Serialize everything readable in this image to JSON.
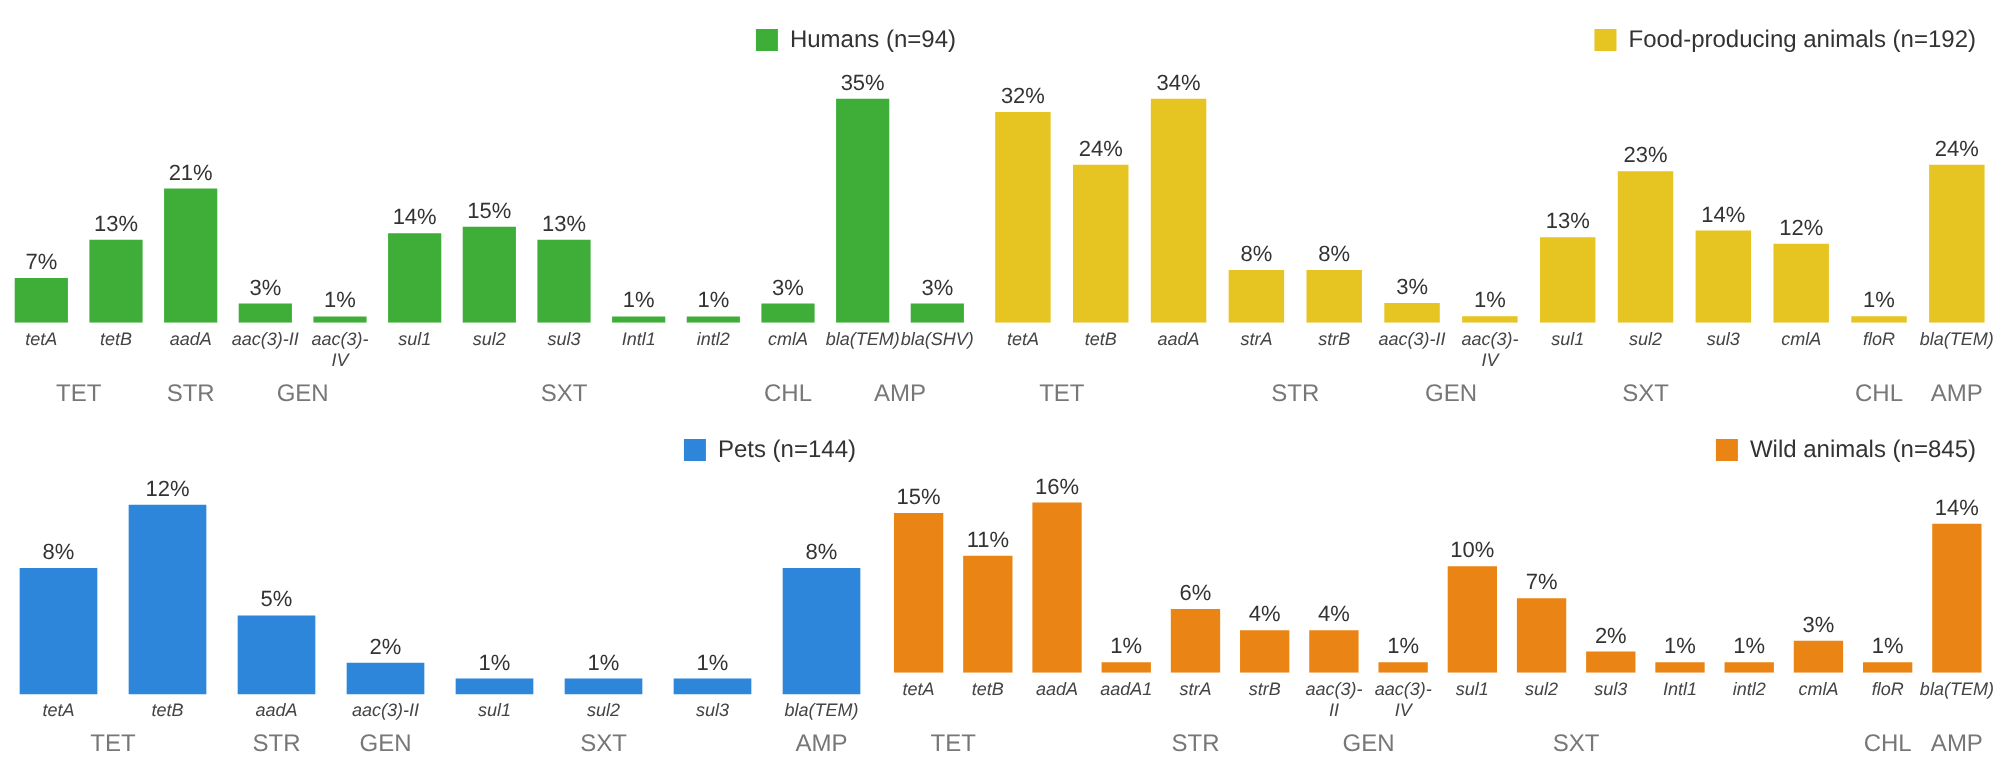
{
  "chart_data": [
    {
      "type": "bar",
      "categories": [
        "tetA",
        "tetB",
        "aadA",
        "aac(3)-II",
        "aac(3)-IV",
        "sul1",
        "sul2",
        "sul3",
        "Intl1",
        "intl2",
        "cmlA",
        "bla(TEM)",
        "bla(SHV)"
      ],
      "series": [
        {
          "name": "Humans (n=94)",
          "color": "#3fae38",
          "values": [
            7,
            13,
            21,
            3,
            1,
            14,
            15,
            13,
            1,
            1,
            3,
            35,
            3
          ],
          "value_labels": [
            "7%",
            "13%",
            "21%",
            "3%",
            "1%",
            "14%",
            "15%",
            "13%",
            "1%",
            "1%",
            "3%",
            "35%",
            "3%"
          ]
        }
      ],
      "annotations": [
        "TET",
        "STR",
        "GEN",
        "SXT",
        "CHL",
        "AMP"
      ],
      "legend": "top right",
      "tick_labels": "x"
    },
    {
      "type": "bar",
      "categories": [
        "tetA",
        "tetB",
        "aadA",
        "strA",
        "strB",
        "aac(3)-II",
        "aac(3)-IV",
        "sul1",
        "sul2",
        "sul3",
        "cmlA",
        "floR",
        "bla(TEM)"
      ],
      "series": [
        {
          "name": "Food-producing animals (n=192)",
          "color": "#e6c421",
          "values": [
            32,
            24,
            34,
            8,
            8,
            3,
            1,
            13,
            23,
            14,
            12,
            1,
            24
          ],
          "value_labels": [
            "32%",
            "24%",
            "34%",
            "8%",
            "8%",
            "3%",
            "1%",
            "13%",
            "23%",
            "14%",
            "12%",
            "1%",
            "24%"
          ]
        }
      ],
      "annotations": [
        "TET",
        "STR",
        "GEN",
        "SXT",
        "CHL",
        "AMP"
      ],
      "legend": "top right",
      "tick_labels": "x"
    },
    {
      "type": "bar",
      "categories": [
        "tetA",
        "tetB",
        "aadA",
        "aac(3)-II",
        "sul1",
        "sul2",
        "sul3",
        "bla(TEM)"
      ],
      "series": [
        {
          "name": "Pets (n=144)",
          "color": "#2d86d9",
          "values": [
            8,
            12,
            5,
            2,
            1,
            1,
            1,
            8
          ],
          "value_labels": [
            "8%",
            "12%",
            "5%",
            "2%",
            "1%",
            "1%",
            "1%",
            "8%"
          ]
        }
      ],
      "annotations": [
        "TET",
        "STR",
        "GEN",
        "SXT",
        "AMP"
      ],
      "legend": "top right",
      "tick_labels": "x"
    },
    {
      "type": "bar",
      "categories": [
        "tetA",
        "tetB",
        "aadA",
        "aadA1",
        "strA",
        "strB",
        "aac(3)-II",
        "aac(3)-IV",
        "sul1",
        "sul2",
        "sul3",
        "Intl1",
        "intl2",
        "cmlA",
        "floR",
        "bla(TEM)"
      ],
      "series": [
        {
          "name": "Wild animals (n=845)",
          "color": "#ea8414",
          "values": [
            15,
            11,
            16,
            1,
            6,
            4,
            4,
            1,
            10,
            7,
            2,
            1,
            1,
            3,
            1,
            14
          ],
          "value_labels": [
            "15%",
            "11%",
            "16%",
            "1%",
            "6%",
            "4%",
            "4%",
            "1%",
            "10%",
            "7%",
            "2%",
            "1%",
            "1%",
            "3%",
            "1%",
            "14%"
          ]
        }
      ],
      "annotations": [
        "TET",
        "STR",
        "GEN",
        "SXT",
        "CHL",
        "AMP"
      ],
      "legend": "top right",
      "tick_labels": "x"
    }
  ]
}
